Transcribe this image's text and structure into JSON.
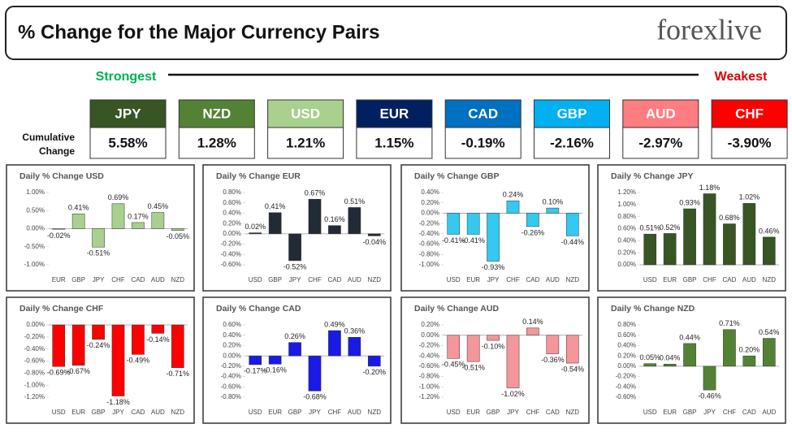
{
  "header": {
    "title": "% Change for the Major Currency Pairs",
    "logo": "forexlive"
  },
  "strength": {
    "strongest": "Strongest",
    "weakest": "Weakest",
    "cumulative_label": [
      "Cumulative",
      "Change"
    ],
    "tiles": [
      {
        "name": "JPY",
        "value": "5.58%",
        "color": "#375623"
      },
      {
        "name": "NZD",
        "value": "1.28%",
        "color": "#548235"
      },
      {
        "name": "USD",
        "value": "1.21%",
        "color": "#a9d08e"
      },
      {
        "name": "EUR",
        "value": "1.15%",
        "color": "#002060"
      },
      {
        "name": "CAD",
        "value": "-0.19%",
        "color": "#0070c0"
      },
      {
        "name": "GBP",
        "value": "-2.16%",
        "color": "#00b0f0"
      },
      {
        "name": "AUD",
        "value": "-2.97%",
        "color": "#ff7c80"
      },
      {
        "name": "CHF",
        "value": "-3.90%",
        "color": "#ff0000"
      }
    ]
  },
  "chart_data": [
    {
      "type": "bar",
      "title": "Daily % Change USD",
      "categories": [
        "EUR",
        "GBP",
        "JPY",
        "CHF",
        "CAD",
        "AUD",
        "NZD"
      ],
      "values": [
        -0.02,
        0.41,
        -0.51,
        0.69,
        0.17,
        0.45,
        -0.05
      ],
      "value_labels": [
        "-0.02%",
        "0.41%",
        "-0.51%",
        "0.69%",
        "0.17%",
        "0.45%",
        "-0.05%"
      ],
      "color": "#a9d08e",
      "ylim": [
        -1,
        1
      ],
      "yticks": [
        {
          "value": -1,
          "label": "-1.00%"
        },
        {
          "value": -0.5,
          "label": "-0.50%"
        },
        {
          "value": 0,
          "label": "0.00%"
        },
        {
          "value": 0.5,
          "label": "0.50%"
        },
        {
          "value": 1,
          "label": "1.00%"
        }
      ]
    },
    {
      "type": "bar",
      "title": "Daily % Change EUR",
      "categories": [
        "USD",
        "GBP",
        "JPY",
        "CHF",
        "CAD",
        "AUD",
        "NZD"
      ],
      "values": [
        0.02,
        0.41,
        -0.52,
        0.67,
        0.16,
        0.51,
        -0.04
      ],
      "value_labels": [
        "0.02%",
        "0.41%",
        "-0.52%",
        "0.67%",
        "0.16%",
        "0.51%",
        "-0.04%"
      ],
      "color": "#222a35",
      "ylim": [
        -0.6,
        0.8
      ],
      "yticks": [
        {
          "value": -0.6,
          "label": "-0.60%"
        },
        {
          "value": -0.4,
          "label": "-0.40%"
        },
        {
          "value": -0.2,
          "label": "-0.20%"
        },
        {
          "value": 0,
          "label": "0.00%"
        },
        {
          "value": 0.2,
          "label": "0.20%"
        },
        {
          "value": 0.4,
          "label": "0.40%"
        },
        {
          "value": 0.6,
          "label": "0.60%"
        },
        {
          "value": 0.8,
          "label": "0.80%"
        }
      ]
    },
    {
      "type": "bar",
      "title": "Daily % Change GBP",
      "categories": [
        "USD",
        "EUR",
        "JPY",
        "CHF",
        "CAD",
        "AUD",
        "NZD"
      ],
      "values": [
        -0.41,
        -0.41,
        -0.93,
        0.24,
        -0.26,
        0.1,
        -0.44
      ],
      "value_labels": [
        "-0.41%",
        "-0.41%",
        "-0.93%",
        "0.24%",
        "-0.26%",
        "0.10%",
        "-0.44%"
      ],
      "color": "#33c9f0",
      "ylim": [
        -1,
        0.4
      ],
      "yticks": [
        {
          "value": -1,
          "label": "-1.00%"
        },
        {
          "value": -0.8,
          "label": "-0.80%"
        },
        {
          "value": -0.6,
          "label": "-0.60%"
        },
        {
          "value": -0.4,
          "label": "-0.40%"
        },
        {
          "value": -0.2,
          "label": "-0.20%"
        },
        {
          "value": 0,
          "label": "0.00%"
        },
        {
          "value": 0.2,
          "label": "0.20%"
        },
        {
          "value": 0.4,
          "label": "0.40%"
        }
      ]
    },
    {
      "type": "bar",
      "title": "Daily % Change JPY",
      "categories": [
        "USD",
        "EUR",
        "GBP",
        "CHF",
        "CAD",
        "AUD",
        "NZD"
      ],
      "values": [
        0.51,
        0.52,
        0.93,
        1.18,
        0.68,
        1.02,
        0.46
      ],
      "value_labels": [
        "0.51%",
        "0.52%",
        "0.93%",
        "1.18%",
        "0.68%",
        "1.02%",
        "0.46%"
      ],
      "color": "#375623",
      "ylim": [
        0,
        1.2
      ],
      "yticks": [
        {
          "value": 0,
          "label": "0.00%"
        },
        {
          "value": 0.2,
          "label": "0.20%"
        },
        {
          "value": 0.4,
          "label": "0.40%"
        },
        {
          "value": 0.6,
          "label": "0.60%"
        },
        {
          "value": 0.8,
          "label": "0.80%"
        },
        {
          "value": 1,
          "label": "1.00%"
        },
        {
          "value": 1.2,
          "label": "1.20%"
        }
      ]
    },
    {
      "type": "bar",
      "title": "Daily % Change CHF",
      "categories": [
        "USD",
        "EUR",
        "GBP",
        "JPY",
        "CAD",
        "AUD",
        "NZD"
      ],
      "values": [
        -0.69,
        -0.67,
        -0.24,
        -1.18,
        -0.49,
        -0.14,
        -0.71
      ],
      "value_labels": [
        "-0.69%",
        "-0.67%",
        "-0.24%",
        "-1.18%",
        "-0.49%",
        "-0.14%",
        "-0.71%"
      ],
      "color": "#ff0000",
      "ylim": [
        -1.2,
        0
      ],
      "yticks": [
        {
          "value": -1.2,
          "label": "-1.20%"
        },
        {
          "value": -1,
          "label": "-1.00%"
        },
        {
          "value": -0.8,
          "label": "-0.80%"
        },
        {
          "value": -0.6,
          "label": "-0.60%"
        },
        {
          "value": -0.4,
          "label": "-0.40%"
        },
        {
          "value": -0.2,
          "label": "-0.20%"
        },
        {
          "value": 0,
          "label": "0.00%"
        }
      ]
    },
    {
      "type": "bar",
      "title": "Daily % Change CAD",
      "categories": [
        "USD",
        "EUR",
        "GBP",
        "JPY",
        "CHF",
        "AUD",
        "NZD"
      ],
      "values": [
        -0.17,
        -0.16,
        0.26,
        -0.68,
        0.49,
        0.36,
        -0.2
      ],
      "value_labels": [
        "-0.17%",
        "-0.16%",
        "0.26%",
        "-0.68%",
        "0.49%",
        "0.36%",
        "-0.20%"
      ],
      "color": "#1a1ae6",
      "ylim": [
        -0.8,
        0.6
      ],
      "yticks": [
        {
          "value": -0.8,
          "label": "-0.80%"
        },
        {
          "value": -0.6,
          "label": "-0.60%"
        },
        {
          "value": -0.4,
          "label": "-0.40%"
        },
        {
          "value": -0.2,
          "label": "-0.20%"
        },
        {
          "value": 0,
          "label": "0.00%"
        },
        {
          "value": 0.2,
          "label": "0.20%"
        },
        {
          "value": 0.4,
          "label": "0.40%"
        },
        {
          "value": 0.6,
          "label": "0.60%"
        }
      ]
    },
    {
      "type": "bar",
      "title": "Daily % Change AUD",
      "categories": [
        "USD",
        "EUR",
        "GBP",
        "JPY",
        "CHF",
        "CAD",
        "NZD"
      ],
      "values": [
        -0.45,
        -0.51,
        -0.1,
        -1.02,
        0.14,
        -0.36,
        -0.54
      ],
      "value_labels": [
        "-0.45%",
        "-0.51%",
        "-0.10%",
        "-1.02%",
        "0.14%",
        "-0.36%",
        "-0.54%"
      ],
      "color": "#f4969a",
      "ylim": [
        -1.2,
        0.2
      ],
      "yticks": [
        {
          "value": -1.2,
          "label": "-1.20%"
        },
        {
          "value": -1,
          "label": "-1.00%"
        },
        {
          "value": -0.8,
          "label": "-0.80%"
        },
        {
          "value": -0.6,
          "label": "-0.60%"
        },
        {
          "value": -0.4,
          "label": "-0.40%"
        },
        {
          "value": -0.2,
          "label": "-0.20%"
        },
        {
          "value": 0,
          "label": "0.00%"
        },
        {
          "value": 0.2,
          "label": "0.20%"
        }
      ]
    },
    {
      "type": "bar",
      "title": "Daily % Change NZD",
      "categories": [
        "USD",
        "EUR",
        "GBP",
        "JPY",
        "CHF",
        "CAD",
        "AUD"
      ],
      "values": [
        0.05,
        0.04,
        0.44,
        -0.46,
        0.71,
        0.2,
        0.54
      ],
      "value_labels": [
        "0.05%",
        "0.04%",
        "0.44%",
        "-0.46%",
        "0.71%",
        "0.20%",
        "0.54%"
      ],
      "color": "#548235",
      "ylim": [
        -0.6,
        0.8
      ],
      "yticks": [
        {
          "value": -0.6,
          "label": "-0.60%"
        },
        {
          "value": -0.4,
          "label": "-0.40%"
        },
        {
          "value": -0.2,
          "label": "-0.20%"
        },
        {
          "value": 0,
          "label": "0.00%"
        },
        {
          "value": 0.2,
          "label": "0.20%"
        },
        {
          "value": 0.4,
          "label": "0.40%"
        },
        {
          "value": 0.6,
          "label": "0.60%"
        },
        {
          "value": 0.8,
          "label": "0.80%"
        }
      ]
    }
  ]
}
